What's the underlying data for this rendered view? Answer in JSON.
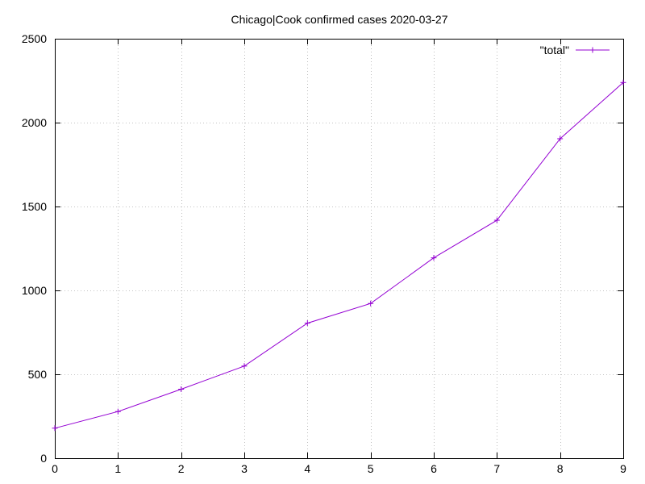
{
  "chart_data": {
    "type": "line",
    "title": "Chicago|Cook confirmed cases 2020-03-27",
    "xlabel": "",
    "ylabel": "",
    "xlim": [
      0,
      9
    ],
    "ylim": [
      0,
      2500
    ],
    "xticks": [
      "0",
      "1",
      "2",
      "3",
      "4",
      "5",
      "6",
      "7",
      "8",
      "9"
    ],
    "yticks": [
      "0",
      "500",
      "1000",
      "1500",
      "2000",
      "2500"
    ],
    "grid": true,
    "legend_position": "top-right",
    "series": [
      {
        "name": "\"total\"",
        "color": "#9400d3",
        "marker": "plus",
        "x": [
          0,
          1,
          2,
          3,
          4,
          5,
          6,
          7,
          8,
          9
        ],
        "y": [
          179,
          278,
          411,
          549,
          805,
          922,
          1194,
          1418,
          1904,
          2239
        ]
      }
    ]
  }
}
